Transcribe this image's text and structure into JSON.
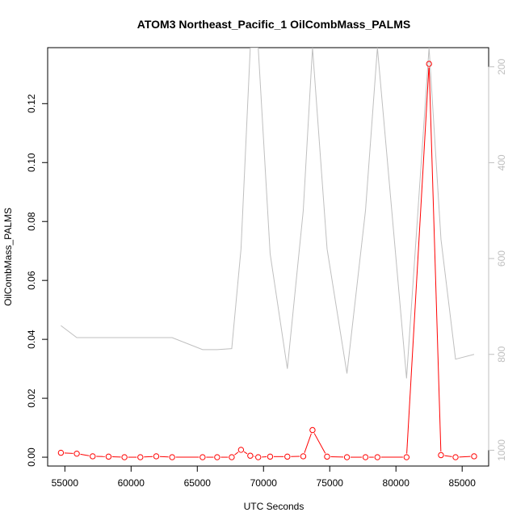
{
  "chart_data": {
    "type": "line",
    "title": "ATOM3 Northeast_Pacific_1 OilCombMass_PALMS",
    "xlabel": "UTC Seconds",
    "ylabel": "OilCombMass_PALMS",
    "xlim": [
      53700,
      87000
    ],
    "ylim": [
      -0.003,
      0.139
    ],
    "y2lim": [
      1033,
      160
    ],
    "y2_reversed": true,
    "xticks": [
      55000,
      60000,
      65000,
      70000,
      75000,
      80000,
      85000
    ],
    "xtick_labels": [
      "55000",
      "60000",
      "65000",
      "70000",
      "75000",
      "80000",
      "85000"
    ],
    "yticks": [
      0.0,
      0.02,
      0.04,
      0.06,
      0.08,
      0.1,
      0.12
    ],
    "ytick_labels": [
      "0.00",
      "0.02",
      "0.04",
      "0.06",
      "0.08",
      "0.10",
      "0.12"
    ],
    "y2ticks": [
      200,
      400,
      600,
      800,
      1000
    ],
    "y2tick_labels": [
      "200",
      "400",
      "600",
      "800",
      "1000"
    ],
    "grid": false,
    "series": [
      {
        "color": "#ff0000",
        "axis": "left",
        "markers": "open-circle",
        "x": [
          54700,
          55900,
          57100,
          58300,
          59500,
          60700,
          61900,
          63100,
          65400,
          66500,
          67600,
          68300,
          69000,
          69600,
          70500,
          71800,
          73000,
          73700,
          74800,
          76300,
          77700,
          78600,
          80800,
          82500,
          83400,
          84500,
          85900
        ],
        "y": [
          0.0015,
          0.0012,
          0.0003,
          0.0002,
          0.0,
          0.0,
          0.0003,
          0.0,
          0.0,
          0.0,
          0.0,
          0.0025,
          0.0005,
          0.0,
          0.0002,
          0.0002,
          0.0003,
          0.0092,
          0.0002,
          0.0,
          0.0,
          0.0,
          0.0,
          0.1335,
          0.0007,
          0.0,
          0.0003
        ]
      },
      {
        "color": "#bfbfbf",
        "axis": "right",
        "markers": "none",
        "x": [
          54700,
          55900,
          57100,
          58300,
          59500,
          60700,
          61900,
          63100,
          65400,
          66500,
          67600,
          68300,
          69000,
          69600,
          70500,
          71800,
          73000,
          73700,
          74800,
          76300,
          77700,
          78600,
          80800,
          82500,
          83400,
          84500,
          85900
        ],
        "y": [
          740,
          765,
          765,
          765,
          765,
          765,
          765,
          765,
          790,
          790,
          788,
          580,
          160,
          160,
          590,
          830,
          500,
          160,
          580,
          840,
          500,
          160,
          850,
          160,
          560,
          810,
          800
        ]
      }
    ]
  }
}
